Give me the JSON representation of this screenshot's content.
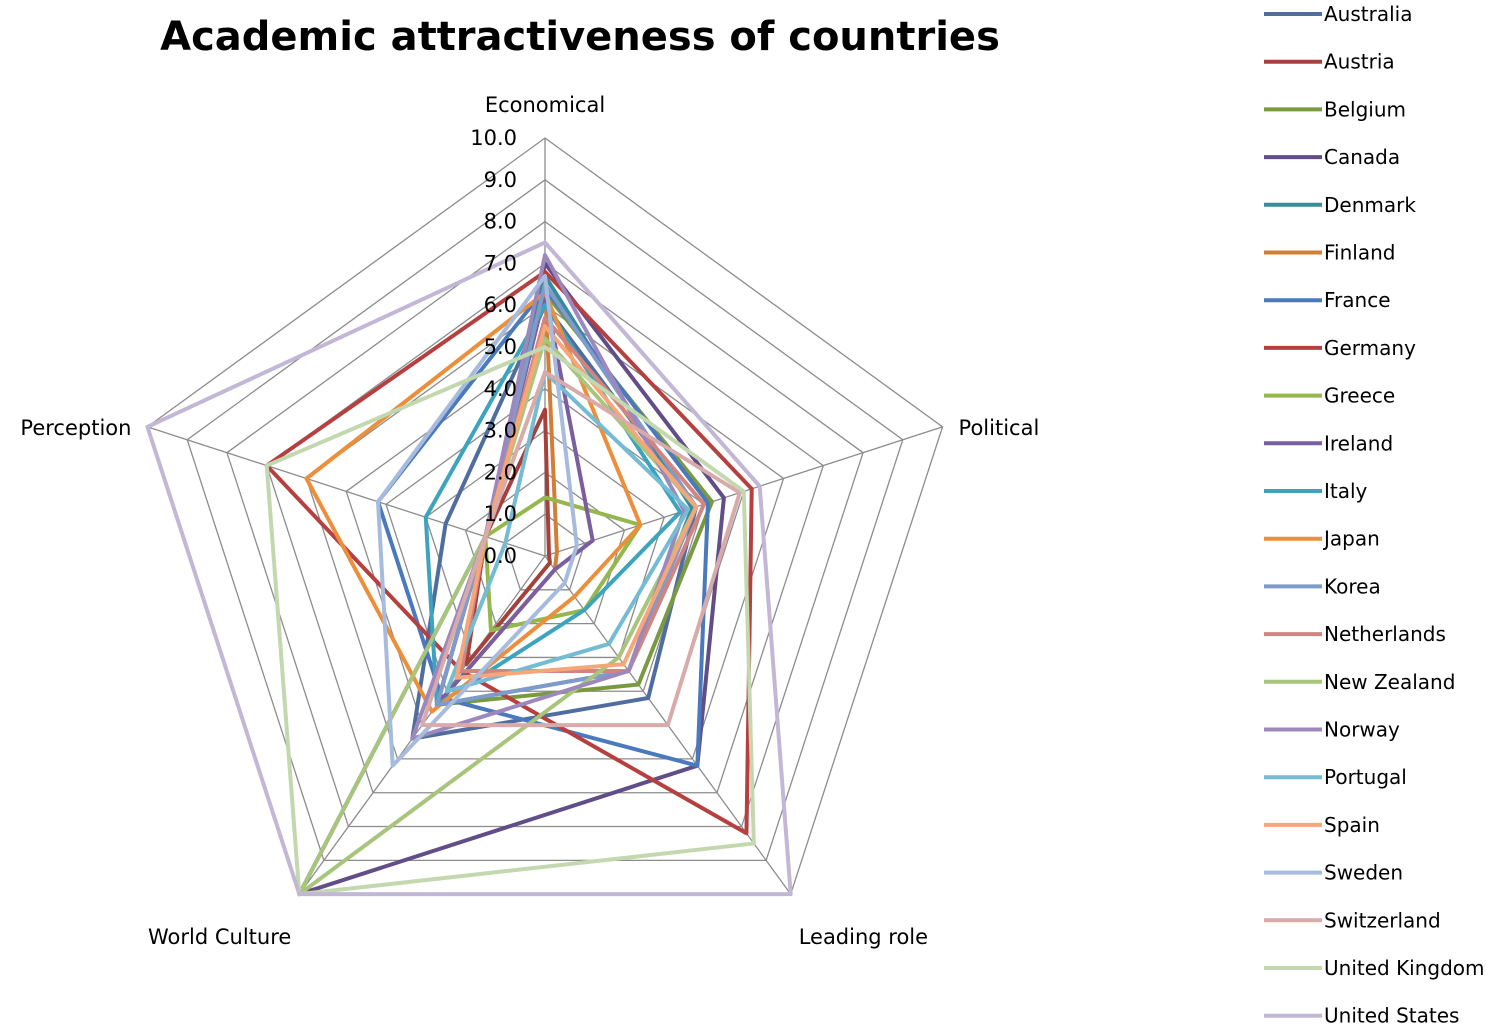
{
  "chart_data": {
    "type": "radar",
    "title": "Academic attractiveness of countries",
    "axes": [
      "Economical",
      "Political",
      "Leading role",
      "World Culture",
      "Perception"
    ],
    "rlim": [
      0,
      10
    ],
    "ticks": [
      "0.0",
      "1.0",
      "2.0",
      "3.0",
      "4.0",
      "5.0",
      "6.0",
      "7.0",
      "8.0",
      "9.0",
      "10.0"
    ],
    "grid": true,
    "legend_position": "right",
    "series": [
      {
        "name": "Australia",
        "color": "#4F6E9F",
        "values": [
          6.0,
          3.8,
          4.2,
          5.4,
          2.5
        ]
      },
      {
        "name": "Austria",
        "color": "#A5403B",
        "values": [
          3.5,
          0.1,
          0.2,
          3.2,
          1.5
        ]
      },
      {
        "name": "Belgium",
        "color": "#799A41",
        "values": [
          6.3,
          4.2,
          3.8,
          4.4,
          1.5
        ]
      },
      {
        "name": "Canada",
        "color": "#614D87",
        "values": [
          7.0,
          4.5,
          6.2,
          10.0,
          1.5
        ]
      },
      {
        "name": "Denmark",
        "color": "#3A8B9A",
        "values": [
          6.7,
          3.7,
          3.4,
          4.4,
          1.5
        ]
      },
      {
        "name": "Finland",
        "color": "#D17F37",
        "values": [
          6.5,
          0.3,
          0.4,
          4.4,
          1.5
        ]
      },
      {
        "name": "France",
        "color": "#4A7ABD",
        "values": [
          6.4,
          4.1,
          6.2,
          4.2,
          4.2
        ]
      },
      {
        "name": "Germany",
        "color": "#B6403F",
        "values": [
          6.8,
          5.2,
          8.2,
          3.4,
          7.0
        ]
      },
      {
        "name": "Greece",
        "color": "#95B84E",
        "values": [
          1.4,
          2.4,
          1.6,
          2.2,
          1.5
        ]
      },
      {
        "name": "Ireland",
        "color": "#7A5E9F",
        "values": [
          6.3,
          1.2,
          0.4,
          4.4,
          1.5
        ]
      },
      {
        "name": "Italy",
        "color": "#3DA4BE",
        "values": [
          6.0,
          3.4,
          1.6,
          4.4,
          3.0
        ]
      },
      {
        "name": "Japan",
        "color": "#EC8E3A",
        "values": [
          6.3,
          2.4,
          1.2,
          4.6,
          6.0
        ]
      },
      {
        "name": "Korea",
        "color": "#7F9BCB",
        "values": [
          6.5,
          3.8,
          3.4,
          4.4,
          1.5
        ]
      },
      {
        "name": "Netherlands",
        "color": "#D2847F",
        "values": [
          5.7,
          4.0,
          3.4,
          3.4,
          1.5
        ]
      },
      {
        "name": "New Zealand",
        "color": "#A8C57C",
        "values": [
          5.2,
          3.8,
          3.0,
          10.0,
          1.5
        ]
      },
      {
        "name": "Norway",
        "color": "#9C88BC",
        "values": [
          7.2,
          3.5,
          3.4,
          5.4,
          1.5
        ]
      },
      {
        "name": "Portugal",
        "color": "#74BCD3",
        "values": [
          4.4,
          3.6,
          2.6,
          4.0,
          1.0
        ]
      },
      {
        "name": "Spain",
        "color": "#F7A67A",
        "values": [
          5.5,
          3.8,
          3.2,
          3.6,
          1.5
        ]
      },
      {
        "name": "Sweden",
        "color": "#A6BBDD",
        "values": [
          6.7,
          0.8,
          0.8,
          6.2,
          4.2
        ]
      },
      {
        "name": "Switzerland",
        "color": "#D9AAAA",
        "values": [
          4.4,
          4.9,
          5.0,
          5.0,
          1.5
        ]
      },
      {
        "name": "United Kingdom",
        "color": "#C3D8AE",
        "values": [
          5.0,
          5.0,
          8.5,
          10.0,
          7.0
        ]
      },
      {
        "name": "United States",
        "color": "#C2B7D5",
        "values": [
          7.5,
          5.4,
          10.0,
          10.0,
          10.0
        ]
      }
    ]
  }
}
